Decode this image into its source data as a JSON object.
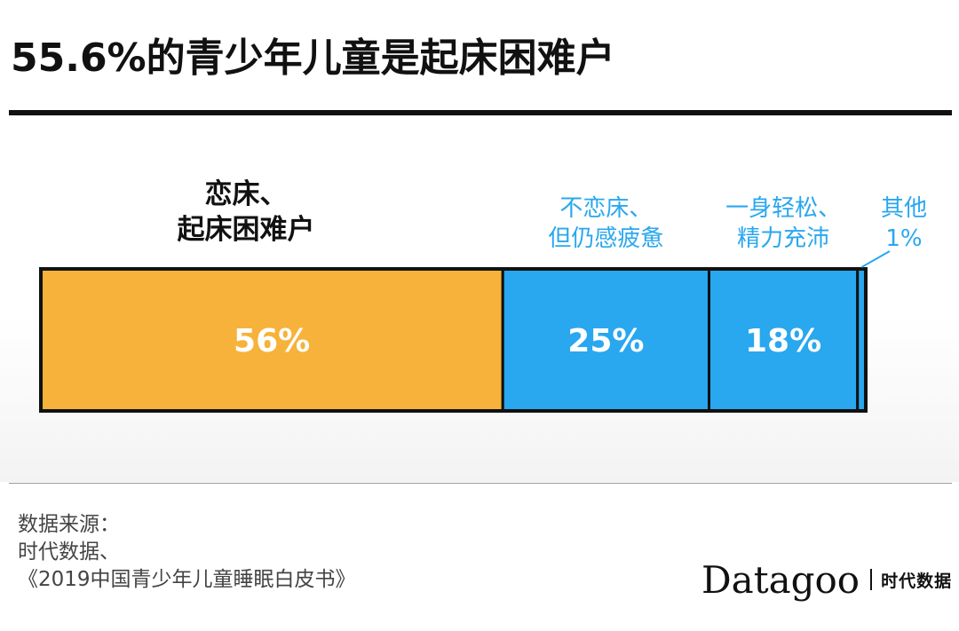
{
  "title": "55.6%的青少年儿童是起床困难户",
  "chart_data": {
    "type": "bar",
    "orientation": "horizontal-stacked",
    "categories": [
      "恋床、起床困难户",
      "不恋床、但仍感疲惫",
      "一身轻松、精力充沛",
      "其他"
    ],
    "category_lines": [
      [
        "恋床、",
        "起床困难户"
      ],
      [
        "不恋床、",
        "但仍感疲惫"
      ],
      [
        "一身轻松、",
        "精力充沛"
      ],
      [
        "其他",
        "1%"
      ]
    ],
    "values": [
      56,
      25,
      18,
      1
    ],
    "value_labels": [
      "56%",
      "25%",
      "18%",
      ""
    ],
    "unit": "%",
    "colors": [
      "#f6b23a",
      "#29a7ef",
      "#29a7ef",
      "#29a7ef"
    ],
    "label_colors": [
      "#111111",
      "#29a7ef",
      "#29a7ef",
      "#29a7ef"
    ],
    "title": "55.6%的青少年儿童是起床困难户",
    "xlabel": "",
    "ylabel": "",
    "xlim": [
      0,
      100
    ],
    "grid": false,
    "legend": "none"
  },
  "source": {
    "lines": [
      "数据来源：",
      "时代数据、",
      "《2019中国青少年儿童睡眠白皮书》"
    ]
  },
  "brand": {
    "name": "Datagoo",
    "cn": "时代数据"
  }
}
